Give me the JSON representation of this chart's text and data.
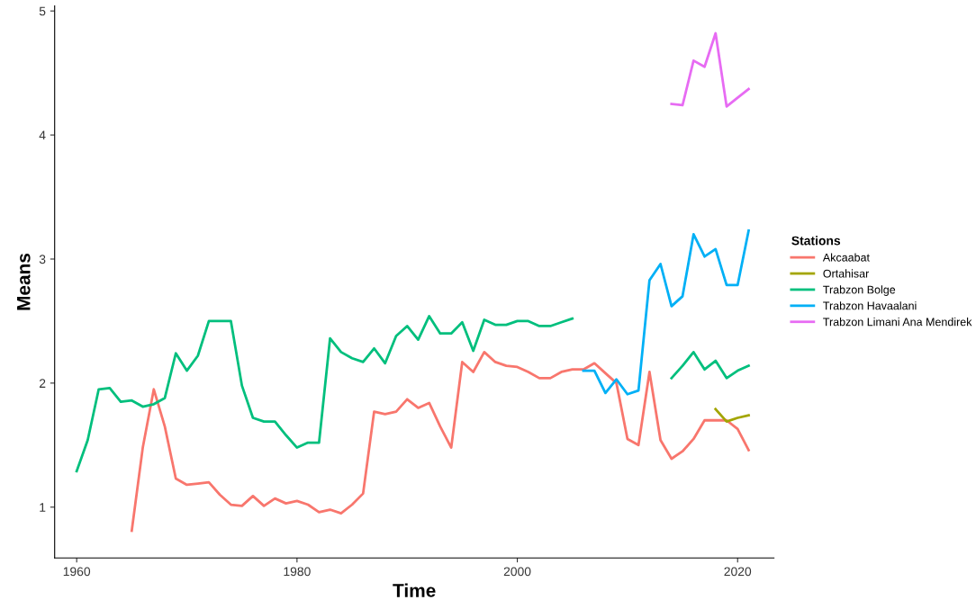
{
  "chart_data": {
    "type": "line",
    "xlabel": "Time",
    "ylabel": "Means",
    "legend_title": "Stations",
    "legend": "right",
    "grid": false,
    "marker": "none",
    "line_style": "solid",
    "xlim": [
      1958,
      2023.3
    ],
    "ylim": [
      0.59,
      5.04
    ],
    "xticks": [
      1960,
      1980,
      2000,
      2020
    ],
    "yticks": [
      1,
      2,
      3,
      4,
      5
    ],
    "series": [
      {
        "name": "Akcaabat",
        "color": "#f8766d",
        "x": [
          1965,
          1966,
          1967,
          1968,
          1969,
          1970,
          1971,
          1972,
          1973,
          1974,
          1975,
          1976,
          1977,
          1978,
          1979,
          1980,
          1981,
          1982,
          1983,
          1984,
          1985,
          1986,
          1987,
          1988,
          1989,
          1990,
          1991,
          1992,
          1993,
          1994,
          1995,
          1996,
          1997,
          1998,
          1999,
          2000,
          2001,
          2002,
          2003,
          2004,
          2005,
          2006,
          2007,
          2008,
          2009,
          2010,
          2011,
          2012,
          2013,
          2014,
          2015,
          2016,
          2017,
          2018,
          2019,
          2020,
          2021
        ],
        "values": [
          0.81,
          1.48,
          1.95,
          1.65,
          1.23,
          1.18,
          1.19,
          1.2,
          1.1,
          1.02,
          1.01,
          1.09,
          1.01,
          1.07,
          1.03,
          1.05,
          1.02,
          0.96,
          0.98,
          0.95,
          1.02,
          1.11,
          1.77,
          1.75,
          1.77,
          1.87,
          1.8,
          1.84,
          1.65,
          1.48,
          2.17,
          2.09,
          2.25,
          2.17,
          2.14,
          2.13,
          2.09,
          2.04,
          2.04,
          2.09,
          2.11,
          2.11,
          2.16,
          2.08,
          2.0,
          1.55,
          1.5,
          2.09,
          1.54,
          1.39,
          1.45,
          1.55,
          1.7,
          1.7,
          1.7,
          1.63,
          1.46
        ]
      },
      {
        "name": "Ortahisar",
        "color": "#a3a500",
        "x": [
          2018,
          2019,
          2020,
          2021
        ],
        "values": [
          1.79,
          1.69,
          1.72,
          1.74
        ]
      },
      {
        "name": "Trabzon Bolge",
        "color": "#00bf7d",
        "x": [
          1960,
          1961,
          1962,
          1963,
          1964,
          1965,
          1966,
          1967,
          1968,
          1969,
          1970,
          1971,
          1972,
          1973,
          1974,
          1975,
          1976,
          1977,
          1978,
          1979,
          1980,
          1981,
          1982,
          1983,
          1984,
          1985,
          1986,
          1987,
          1988,
          1989,
          1990,
          1991,
          1992,
          1993,
          1994,
          1995,
          1996,
          1997,
          1998,
          1999,
          2000,
          2001,
          2002,
          2003,
          2004,
          2005,
          null,
          2014,
          2015,
          2016,
          2017,
          2018,
          2019,
          2020,
          2021
        ],
        "values": [
          1.29,
          1.54,
          1.95,
          1.96,
          1.85,
          1.86,
          1.81,
          1.83,
          1.88,
          2.24,
          2.1,
          2.22,
          2.5,
          2.5,
          2.5,
          1.98,
          1.72,
          1.69,
          1.69,
          1.58,
          1.48,
          1.52,
          1.52,
          2.36,
          2.25,
          2.2,
          2.17,
          2.28,
          2.16,
          2.38,
          2.46,
          2.35,
          2.54,
          2.4,
          2.4,
          2.49,
          2.26,
          2.51,
          2.47,
          2.47,
          2.5,
          2.5,
          2.46,
          2.46,
          2.49,
          2.52,
          null,
          2.04,
          2.14,
          2.25,
          2.11,
          2.18,
          2.04,
          2.1,
          2.14
        ]
      },
      {
        "name": "Trabzon Havaalani",
        "color": "#00b0f6",
        "x": [
          2006,
          2007,
          2008,
          2009,
          2010,
          2011,
          2012,
          2013,
          2014,
          2015,
          2016,
          2017,
          2018,
          2019,
          2020,
          2021
        ],
        "values": [
          2.1,
          2.1,
          1.92,
          2.03,
          1.91,
          1.94,
          2.83,
          2.96,
          2.62,
          2.7,
          3.2,
          3.02,
          3.08,
          2.79,
          2.79,
          3.23
        ]
      },
      {
        "name": "Trabzon Limani Ana Mendirek",
        "color": "#e76bf3",
        "x": [
          2014,
          2015,
          2016,
          2017,
          2018,
          2019,
          2020,
          2021
        ],
        "values": [
          4.25,
          4.24,
          4.6,
          4.55,
          4.82,
          4.23,
          4.3,
          4.37
        ]
      }
    ]
  }
}
